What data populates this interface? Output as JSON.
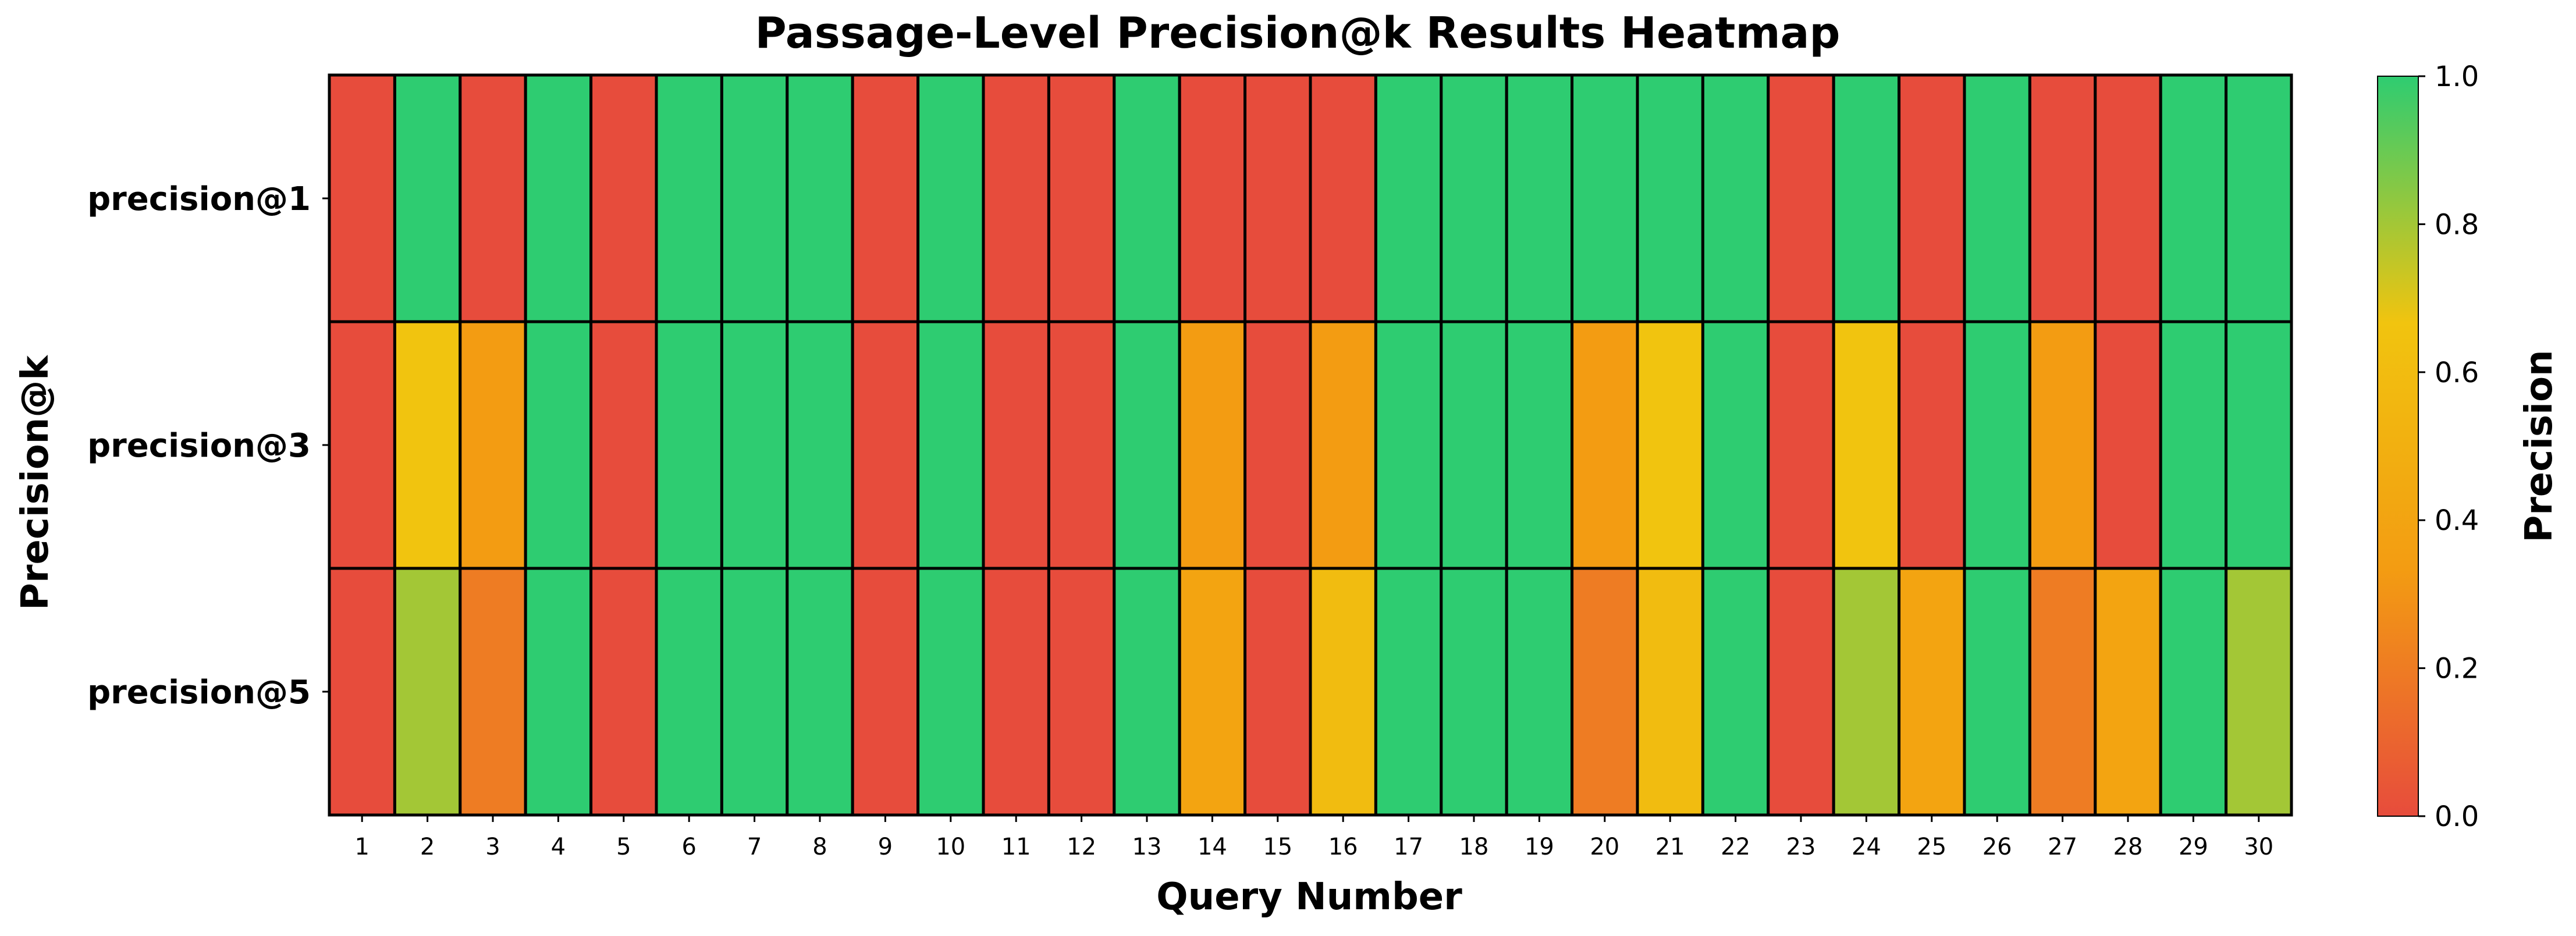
{
  "chart_data": {
    "type": "heatmap",
    "title": "Passage-Level Precision@k Results Heatmap",
    "xlabel": "Query Number",
    "ylabel": "Precision@k",
    "colorbar_label": "Precision",
    "colorbar_range": [
      0.0,
      1.0
    ],
    "colorbar_ticks": [
      "0.0",
      "0.2",
      "0.4",
      "0.6",
      "0.8",
      "1.0"
    ],
    "colormap": [
      "#e74c3c",
      "#f39c12",
      "#f1c40f",
      "#2ecc71"
    ],
    "x_categories": [
      "1",
      "2",
      "3",
      "4",
      "5",
      "6",
      "7",
      "8",
      "9",
      "10",
      "11",
      "12",
      "13",
      "14",
      "15",
      "16",
      "17",
      "18",
      "19",
      "20",
      "21",
      "22",
      "23",
      "24",
      "25",
      "26",
      "27",
      "28",
      "29",
      "30"
    ],
    "y_categories": [
      "precision@1",
      "precision@3",
      "precision@5"
    ],
    "values": [
      [
        0,
        1,
        0,
        1,
        0,
        1,
        1,
        1,
        0,
        1,
        0,
        0,
        1,
        0,
        0,
        0,
        1,
        1,
        1,
        1,
        1,
        1,
        0,
        1,
        0,
        1,
        0,
        0,
        1,
        1
      ],
      [
        0,
        0.667,
        0.333,
        1,
        0,
        1,
        1,
        1,
        0,
        1,
        0,
        0,
        1,
        0.333,
        0,
        0.333,
        1,
        1,
        1,
        0.333,
        0.667,
        1,
        0,
        0.667,
        0,
        1,
        0.333,
        0,
        1,
        1
      ],
      [
        0,
        0.8,
        0.2,
        1,
        0,
        1,
        1,
        1,
        0,
        1,
        0,
        0,
        1,
        0.4,
        0,
        0.6,
        1,
        1,
        1,
        0.2,
        0.6,
        1,
        0,
        0.8,
        0.4,
        1,
        0.2,
        0.4,
        1,
        0.8
      ]
    ]
  }
}
